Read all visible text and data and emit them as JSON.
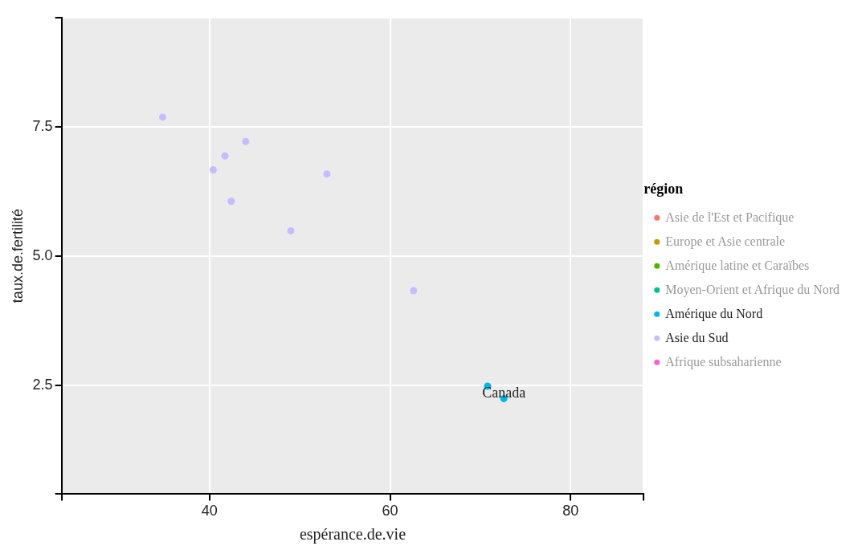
{
  "chart_data": {
    "type": "scatter",
    "xlabel": "espérance.de.vie",
    "ylabel": "taux.de.fertilité",
    "legend_title": "région",
    "legend": "right",
    "grid": true,
    "marker": "circle",
    "xlim": [
      23.6,
      88.1
    ],
    "xticks": [
      {
        "value": 23.6,
        "label": null
      },
      40,
      60,
      80,
      {
        "value": 88.1,
        "label": null
      }
    ],
    "ylim": [
      0.39,
      9.62
    ],
    "yticks": [
      {
        "value": 0.39,
        "label": null
      },
      2.5,
      {
        "value": 5,
        "label": "5.0"
      },
      7.5,
      {
        "value": 9.62,
        "label": null
      }
    ],
    "series": [
      {
        "name": "Asie de l'Est et Pacifique",
        "color": "#f8766d"
      },
      {
        "name": "Europe et Asie centrale",
        "color": "#c49a00"
      },
      {
        "name": "Amérique latine et Caraïbes",
        "color": "#53b400"
      },
      {
        "name": "Moyen-Orient et Afrique du Nord",
        "color": "#00c094"
      },
      {
        "name": "Amérique du Nord",
        "color": "#00b6eb",
        "x": [
          70.8,
          72.6
        ],
        "values": [
          2.48,
          2.24
        ]
      },
      {
        "name": "Asie du Sud",
        "color": "#c8bbff",
        "x": [
          34.8,
          44.0,
          41.7,
          40.4,
          53.0,
          42.4,
          49.0,
          62.6
        ],
        "values": [
          7.69,
          7.22,
          6.94,
          6.67,
          6.59,
          6.06,
          5.49,
          4.33
        ]
      },
      {
        "name": "Afrique subsaharienne",
        "color": "#fb61d7"
      }
    ],
    "annotations": [
      {
        "text": "Canada",
        "x": 72.6,
        "y": 2.24
      }
    ]
  }
}
